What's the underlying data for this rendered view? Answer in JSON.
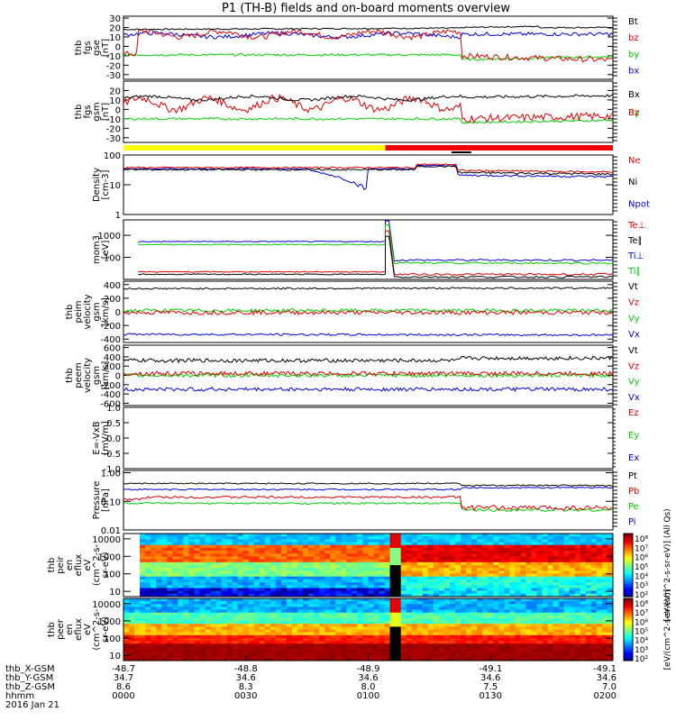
{
  "title": "P1 (TH-B) fields and on-board moments overview",
  "colors": {
    "black": "#000000",
    "red": "#dd0000",
    "green": "#00cc00",
    "blue": "#0000dd",
    "yellow": "#ffff00",
    "barred": "#ee0000"
  },
  "chart_data": [
    {
      "type": "line",
      "ylabel": [
        "thb",
        "fgs",
        "gse",
        "[nT]"
      ],
      "ylim": [
        -35,
        32
      ],
      "yticks": [
        "30",
        "20",
        "10",
        "0",
        "-10",
        "-20",
        "-30"
      ],
      "series": [
        {
          "name": "Bt",
          "color": "#000000"
        },
        {
          "name": "bz",
          "color": "#dd0000"
        },
        {
          "name": "by",
          "color": "#00cc00"
        },
        {
          "name": "bx",
          "color": "#0000dd"
        }
      ]
    },
    {
      "type": "line",
      "ylabel": [
        "thb",
        "fgs",
        "gsm",
        "[nT]"
      ],
      "ylim": [
        -35,
        30
      ],
      "yticks": [
        "20",
        "10",
        "0",
        "-10",
        "-20",
        "-30"
      ],
      "series": [
        {
          "name": "Bx",
          "color": "#000000"
        },
        {
          "name": "By",
          "color": "#00cc00"
        },
        {
          "name": "Bz",
          "color": "#dd0000"
        }
      ]
    },
    {
      "type": "line",
      "ylabel": [
        "Density",
        "[cm-3]"
      ],
      "yscale": "log",
      "ylim": [
        1,
        100
      ],
      "yticks": [
        "100",
        "10",
        "1"
      ],
      "series": [
        {
          "name": "Ne",
          "color": "#dd0000"
        },
        {
          "name": "Ni",
          "color": "#000000"
        },
        {
          "name": "Npot",
          "color": "#0000dd"
        }
      ]
    },
    {
      "type": "line",
      "ylabel": [
        "mom3",
        "[eV]"
      ],
      "yscale": "log",
      "ylim": [
        10,
        5000
      ],
      "yticks": [
        "1000",
        "100"
      ],
      "series": [
        {
          "name": "Te⊥",
          "color": "#dd0000"
        },
        {
          "name": "Te∥",
          "color": "#000000"
        },
        {
          "name": "Ti⊥",
          "color": "#0000dd"
        },
        {
          "name": "Ti∥",
          "color": "#00cc00"
        }
      ]
    },
    {
      "type": "line",
      "ylabel": [
        "thb",
        "peim",
        "velocity",
        "gsm",
        "[km/s]"
      ],
      "ylim": [
        -450,
        450
      ],
      "yticks": [
        "400",
        "200",
        "0",
        "-200",
        "-400"
      ],
      "series": [
        {
          "name": "Vt",
          "color": "#000000"
        },
        {
          "name": "Vz",
          "color": "#dd0000"
        },
        {
          "name": "Vy",
          "color": "#00cc00"
        },
        {
          "name": "Vx",
          "color": "#0000dd"
        }
      ]
    },
    {
      "type": "line",
      "ylabel": [
        "thb",
        "peem",
        "velocity",
        "gsm",
        "[km/s]"
      ],
      "ylim": [
        -650,
        650
      ],
      "yticks": [
        "600",
        "400",
        "200",
        "0",
        "-200",
        "-400",
        "-600"
      ],
      "series": [
        {
          "name": "Vt",
          "color": "#000000"
        },
        {
          "name": "Vz",
          "color": "#dd0000"
        },
        {
          "name": "Vy",
          "color": "#00cc00"
        },
        {
          "name": "Vx",
          "color": "#0000dd"
        }
      ]
    },
    {
      "type": "line",
      "ylabel": [
        "E=-VxB",
        "[mV/m]"
      ],
      "ylim": [
        -1.0,
        1.0
      ],
      "yticks": [
        "1.0",
        "0.5",
        "0.0",
        "-0.5",
        "-1.0"
      ],
      "series": [
        {
          "name": "Ez",
          "color": "#dd0000"
        },
        {
          "name": "Ey",
          "color": "#00cc00"
        },
        {
          "name": "Ex",
          "color": "#0000dd"
        }
      ]
    },
    {
      "type": "line",
      "ylabel": [
        "Pressure",
        "[nPa]"
      ],
      "yscale": "log",
      "ylim": [
        0.01,
        1.0
      ],
      "yticks": [
        "1.00",
        "0.10",
        "0.01"
      ],
      "series": [
        {
          "name": "Pt",
          "color": "#000000"
        },
        {
          "name": "Pb",
          "color": "#dd0000"
        },
        {
          "name": "Pe",
          "color": "#00cc00"
        },
        {
          "name": "Pi",
          "color": "#0000dd"
        }
      ]
    },
    {
      "type": "heatmap",
      "ylabel": [
        "thb",
        "peir",
        "en",
        "eflux",
        "eV",
        "(cm^2-s-",
        "sr-eV)"
      ],
      "yscale": "log",
      "yticks": [
        "10000",
        "1000",
        "100",
        "10"
      ],
      "colorbar_label": "[eV/(cm^2-s-sr-eV)] (All Qs)",
      "colorbar_ticks": [
        "10⁸",
        "10⁷",
        "10⁶",
        "10⁵",
        "10⁴",
        "10³",
        "10²"
      ]
    },
    {
      "type": "heatmap",
      "ylabel": [
        "thb",
        "peer",
        "en",
        "eflux",
        "eV",
        "(cm^2-s-",
        "sr-eV)"
      ],
      "yscale": "log",
      "yticks": [
        "10000",
        "1000",
        "100",
        "10"
      ],
      "colorbar_label": "[eV/(cm^2-s-sr-eV)]",
      "colorbar_ticks": [
        "10⁸",
        "10⁷",
        "10⁶",
        "10⁵",
        "10⁴",
        "10³",
        "10²"
      ]
    }
  ],
  "xaxis": {
    "rows": [
      {
        "label": "thb_X-GSM",
        "values": [
          "-48.7",
          "-48.8",
          "-48.9",
          "-49.1",
          "-49.1"
        ]
      },
      {
        "label": "thb_Y-GSM",
        "values": [
          "34.7",
          "34.6",
          "34.6",
          "34.6",
          "34.6"
        ]
      },
      {
        "label": "thb_Z-GSM",
        "values": [
          "8.6",
          "8.3",
          "8.0",
          "7.5",
          "7.0"
        ]
      },
      {
        "label": "hhmm",
        "values": [
          "0000",
          "0030",
          "0100",
          "0130",
          "0200"
        ]
      }
    ],
    "date": "2016 Jan 21"
  }
}
